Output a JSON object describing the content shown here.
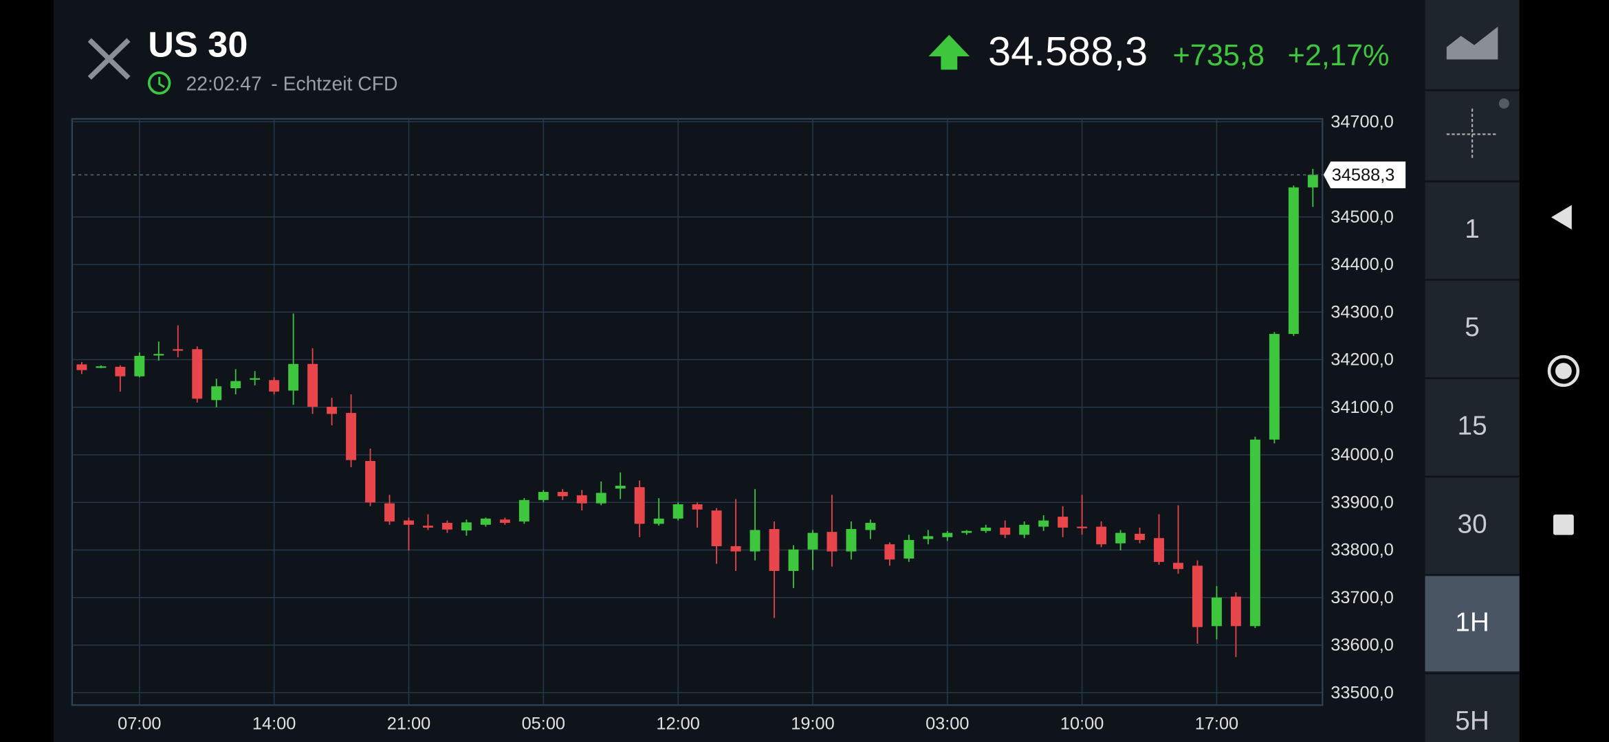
{
  "header": {
    "symbol": "US 30",
    "time": "22:02:47",
    "source": "- Echtzeit CFD",
    "price": "34.588,3",
    "change": "+735,8",
    "change_pct": "+2,17%"
  },
  "timeframes": {
    "items": [
      "1",
      "5",
      "15",
      "30",
      "1H",
      "5H"
    ],
    "selected": 4
  },
  "chart_data": {
    "type": "candlestick",
    "up_color": "#3ec73e",
    "down_color": "#e8464a",
    "grid": true,
    "categories": [
      null,
      null,
      null,
      "07:00",
      null,
      null,
      null,
      null,
      null,
      null,
      "14:00",
      null,
      null,
      null,
      null,
      null,
      null,
      "21:00",
      null,
      null,
      null,
      null,
      null,
      null,
      "05:00",
      null,
      null,
      null,
      null,
      null,
      null,
      "12:00",
      null,
      null,
      null,
      null,
      null,
      null,
      "19:00",
      null,
      null,
      null,
      null,
      null,
      null,
      "03:00",
      null,
      null,
      null,
      null,
      null,
      null,
      "10:00",
      null,
      null,
      null,
      null,
      null,
      null,
      "17:00",
      null,
      null,
      null,
      null,
      null
    ],
    "open": [
      34190,
      34183,
      34185,
      34165,
      34210,
      34222,
      34222,
      34115,
      34140,
      34160,
      34157,
      34135,
      34191,
      34101,
      34088,
      33987,
      33898,
      33862,
      33851,
      33857,
      33841,
      33853,
      33864,
      33860,
      33905,
      33922,
      33915,
      33898,
      33929,
      33932,
      33855,
      33866,
      33896,
      33883,
      33808,
      33797,
      33844,
      33756,
      33801,
      33838,
      33797,
      33842,
      33812,
      33782,
      33823,
      33827,
      33836,
      33840,
      33847,
      33832,
      33849,
      33870,
      33849,
      33849,
      33814,
      33834,
      33825,
      33773,
      33767,
      33640,
      33702,
      33640,
      34032,
      34254,
      34562
    ],
    "high": [
      34195,
      34188,
      34188,
      34215,
      34238,
      34272,
      34228,
      34160,
      34180,
      34176,
      34163,
      34297,
      34224,
      34120,
      34127,
      34013,
      33916,
      33868,
      33875,
      33862,
      33864,
      33868,
      33868,
      33909,
      33926,
      33928,
      33926,
      33944,
      33963,
      33946,
      33909,
      33900,
      33900,
      33888,
      33907,
      33928,
      33860,
      33810,
      33842,
      33916,
      33860,
      33864,
      33816,
      33832,
      33842,
      33840,
      33842,
      33853,
      33862,
      33860,
      33873,
      33892,
      33916,
      33860,
      33842,
      33847,
      33875,
      33894,
      33778,
      33724,
      33711,
      34038,
      34258,
      34566,
      34601
    ],
    "low": [
      34170,
      34182,
      34133,
      34163,
      34198,
      34205,
      34110,
      34100,
      34127,
      34146,
      34127,
      34105,
      34086,
      34062,
      33974,
      33892,
      33853,
      33799,
      33842,
      33836,
      33830,
      33849,
      33853,
      33855,
      33900,
      33905,
      33883,
      33894,
      33907,
      33827,
      33851,
      33862,
      33847,
      33771,
      33756,
      33778,
      33657,
      33720,
      33758,
      33765,
      33780,
      33823,
      33767,
      33775,
      33812,
      33819,
      33832,
      33836,
      33825,
      33825,
      33840,
      33827,
      33832,
      33806,
      33799,
      33814,
      33769,
      33750,
      33603,
      33612,
      33575,
      33636,
      34024,
      34250,
      34521
    ],
    "close": [
      34178,
      34186,
      34165,
      34208,
      34212,
      34220,
      34118,
      34144,
      34155,
      34161,
      34133,
      34191,
      34101,
      34086,
      33989,
      33900,
      33860,
      33853,
      33847,
      33843,
      33858,
      33866,
      33857,
      33905,
      33922,
      33913,
      33898,
      33920,
      33935,
      33855,
      33866,
      33896,
      33885,
      33808,
      33797,
      33842,
      33756,
      33801,
      33836,
      33797,
      33844,
      33857,
      33780,
      33821,
      33829,
      33836,
      33840,
      33847,
      33832,
      33853,
      33862,
      33847,
      33847,
      33812,
      33836,
      33821,
      33775,
      33760,
      33638,
      33700,
      33640,
      34032,
      34254,
      34562,
      34588.3
    ],
    "ylim": [
      33474,
      34706
    ],
    "yticks": [
      {
        "value": 33500,
        "label": "33500,0"
      },
      {
        "value": 33600,
        "label": "33600,0"
      },
      {
        "value": 33700,
        "label": "33700,0"
      },
      {
        "value": 33800,
        "label": "33800,0"
      },
      {
        "value": 33900,
        "label": "33900,0"
      },
      {
        "value": 34000,
        "label": "34000,0"
      },
      {
        "value": 34100,
        "label": "34100,0"
      },
      {
        "value": 34200,
        "label": "34200,0"
      },
      {
        "value": 34300,
        "label": "34300,0"
      },
      {
        "value": 34400,
        "label": "34400,0"
      },
      {
        "value": 34500,
        "label": "34500,0"
      },
      {
        "value": 34700,
        "label": "34700,0"
      }
    ],
    "last_price": {
      "value": 34588.3,
      "label": "34588,3"
    }
  }
}
